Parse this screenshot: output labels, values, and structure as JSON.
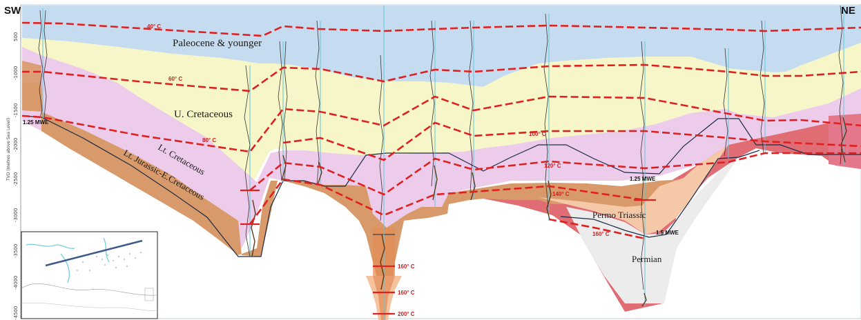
{
  "titles": {
    "left": "SW",
    "right": "NE"
  },
  "axis": {
    "ylabel": "TVD (metres above Sea Level)",
    "ticks": [
      "500",
      "-1000",
      "-1500",
      "-2000",
      "-2500",
      "-3000",
      "-3500",
      "-4000",
      "-4500"
    ]
  },
  "units": [
    {
      "name": "Paleocene & younger",
      "color": "#c5dcf0"
    },
    {
      "name": "U. Cretaceous",
      "color": "#f6f6c8"
    },
    {
      "name": "Lt. Cretaceous",
      "color": "#ecccea"
    },
    {
      "name": "Lt. Jurassic-E.Cretaceous",
      "color": "#d89a6a"
    },
    {
      "name": "Permo Triassic",
      "color": "#f5c8a8"
    },
    {
      "name": "Permian",
      "color": "#ececec"
    }
  ],
  "isotherms": {
    "t40": "40° C",
    "t60": "60° C",
    "t80": "80° C",
    "t100": "100° C",
    "t120": "120° C",
    "t140": "140° C",
    "t160_left": "160° C",
    "t160_a": "160° C",
    "t160_b": "160° C",
    "t200": "200° C"
  },
  "mwe": {
    "left": "1.25 MWE",
    "mid": "1.25 MWE",
    "right": "1.5 MWE"
  },
  "colors": {
    "isotherm": "#e02020",
    "well": "#63c6d8",
    "outline": "#1c2a44",
    "halo": "#e06c74"
  }
}
